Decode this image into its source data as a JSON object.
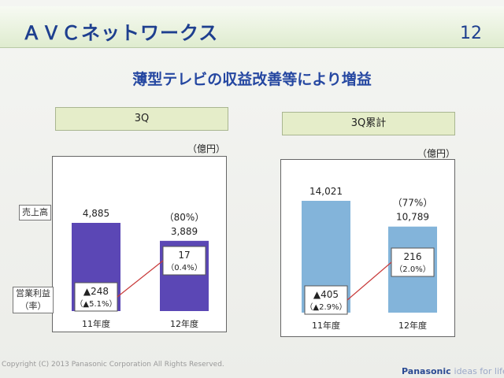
{
  "header": {
    "title": "ＡＶＣネットワークス",
    "page": "12"
  },
  "subtitle": "薄型テレビの収益改善等により増益",
  "left": {
    "section": "3Q",
    "unit": "（億円）"
  },
  "right": {
    "section": "3Q累計",
    "unit": "（億円）"
  },
  "row_labels": {
    "sales": "売上高",
    "profit": "営業利益",
    "rate": "（率）"
  },
  "footer": {
    "copyright": "Copyright (C) 2013 Panasonic Corporation All Rights Reserved.",
    "brand": "Panasonic",
    "tagline": "ideas for life"
  },
  "colors": {
    "left_bar": "#5b47b5",
    "right_bar": "#83b4da",
    "connector": "#c83a3a"
  },
  "chart_data": [
    {
      "type": "bar",
      "title": "3Q",
      "categories": [
        "11年度",
        "12年度"
      ],
      "series": [
        {
          "name": "売上高",
          "values": [
            4885,
            3889
          ]
        }
      ],
      "value_labels": [
        "4,885",
        "3,889"
      ],
      "yoy_label": "（80%）",
      "profit": [
        {
          "value": -248,
          "rate": -5.1,
          "label": "▲248",
          "rate_label": "（▲5.1%）"
        },
        {
          "value": 17,
          "rate": 0.4,
          "label": "17",
          "rate_label": "（0.4%）"
        }
      ],
      "ylabel": "（億円）"
    },
    {
      "type": "bar",
      "title": "3Q累計",
      "categories": [
        "11年度",
        "12年度"
      ],
      "series": [
        {
          "name": "売上高",
          "values": [
            14021,
            10789
          ]
        }
      ],
      "value_labels": [
        "14,021",
        "10,789"
      ],
      "yoy_label": "（77%）",
      "profit": [
        {
          "value": -405,
          "rate": -2.9,
          "label": "▲405",
          "rate_label": "（▲2.9%）"
        },
        {
          "value": 216,
          "rate": 2.0,
          "label": "216",
          "rate_label": "（2.0%）"
        }
      ],
      "ylabel": "（億円）"
    }
  ]
}
